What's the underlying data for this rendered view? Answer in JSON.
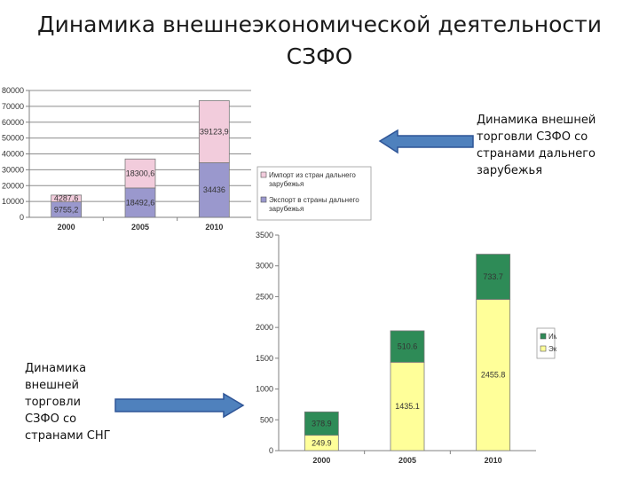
{
  "slide": {
    "title_line1": "Динамика внешнеэкономической деятельности",
    "title_line2": "СЗФО",
    "caption_far_abroad": "Динамика внешней торговли СЗФО со странами дальнего зарубежья",
    "caption_cis": "Динамика внешней торговли СЗФО со странами СНГ"
  },
  "chart_data": [
    {
      "type": "bar",
      "stacked": true,
      "categories": [
        "2000",
        "2005",
        "2010"
      ],
      "series": [
        {
          "name": "Экспорт в страны дальнего зарубежья",
          "values": [
            9755.2,
            18492.6,
            34436
          ],
          "labels": [
            "9755,2",
            "18492,6",
            "34436"
          ],
          "color": "#9a98cd"
        },
        {
          "name": "Импорт из стран дальнего зарубежья",
          "values": [
            4287.6,
            18300.6,
            39123.9
          ],
          "labels": [
            "4287,6",
            "18300,6",
            "39123,9"
          ],
          "color": "#f2ccdc"
        }
      ],
      "ylim": [
        0,
        80000
      ],
      "yticks": [
        "0",
        "10000",
        "20000",
        "30000",
        "40000",
        "50000",
        "60000",
        "70000",
        "80000"
      ],
      "grid": true,
      "legend_position": "right"
    },
    {
      "type": "bar",
      "stacked": true,
      "categories": [
        "2000",
        "2005",
        "2010"
      ],
      "series": [
        {
          "name": "Экспорт в страны СНГ",
          "values": [
            249.9,
            1435.1,
            2455.8
          ],
          "labels": [
            "249.9",
            "1435.1",
            "2455.8"
          ],
          "color": "#ffff99"
        },
        {
          "name": "Импорт из стран СНГ",
          "values": [
            378.9,
            510.6,
            733.7
          ],
          "labels": [
            "378.9",
            "510.6",
            "733.7"
          ],
          "color": "#2e8b57"
        }
      ],
      "ylim": [
        0,
        3500
      ],
      "yticks": [
        "0",
        "500",
        "1000",
        "1500",
        "2000",
        "2500",
        "3000",
        "3500"
      ],
      "grid": false,
      "legend_position": "right"
    }
  ]
}
